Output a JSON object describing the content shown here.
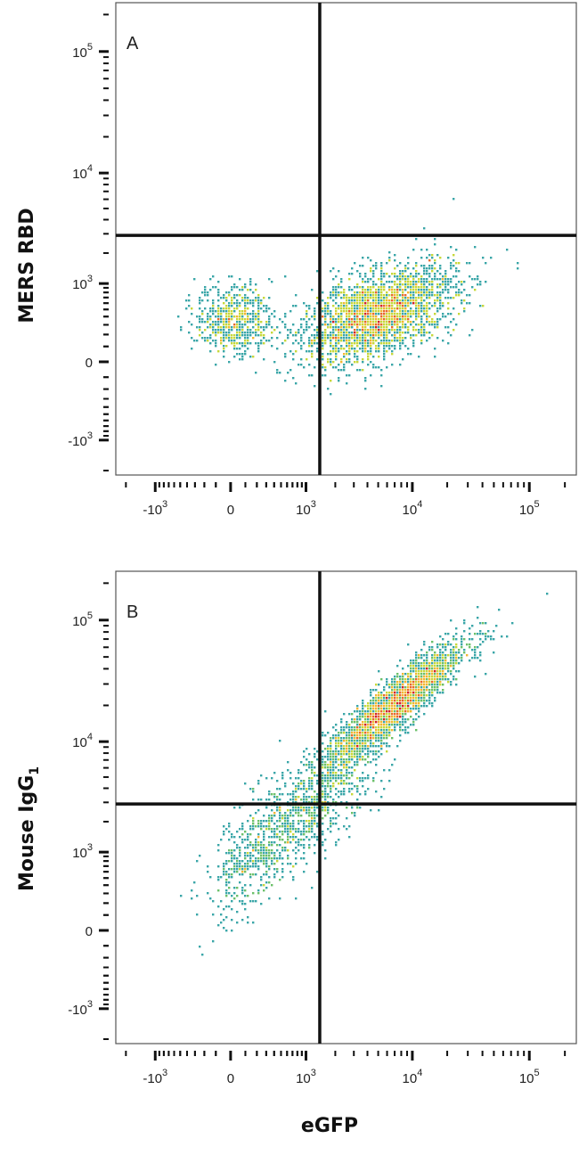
{
  "chart_data": [
    {
      "type": "scatter",
      "subtype": "flow-cytometry-density-dot-plot",
      "panel_label": "A",
      "xlabel": "eGFP",
      "ylabel": "MERS RBD",
      "x_scale": "biexponential",
      "y_scale": "biexponential",
      "x_ticks": [
        {
          "base": "-10",
          "exp": "3",
          "value": -1000
        },
        {
          "base": "0",
          "exp": "",
          "value": 0
        },
        {
          "base": "10",
          "exp": "3",
          "value": 1000
        },
        {
          "base": "10",
          "exp": "4",
          "value": 10000
        },
        {
          "base": "10",
          "exp": "5",
          "value": 100000
        }
      ],
      "y_ticks": [
        {
          "base": "-10",
          "exp": "3",
          "value": -1000
        },
        {
          "base": "0",
          "exp": "",
          "value": 0
        },
        {
          "base": "10",
          "exp": "3",
          "value": 1000
        },
        {
          "base": "10",
          "exp": "4",
          "value": 10000
        },
        {
          "base": "10",
          "exp": "5",
          "value": 100000
        }
      ],
      "xlim": [
        -2500,
        250000
      ],
      "ylim": [
        -2200,
        250000
      ],
      "quadrant_gate": {
        "x": 1400,
        "y": 2900
      },
      "populations": [
        {
          "center": [
            5000,
            420
          ],
          "count": 2500,
          "spread": [
            0.33,
            0.2
          ],
          "corr": 0.5
        },
        {
          "center": [
            20,
            360
          ],
          "count": 600,
          "spread": [
            0.16,
            0.14
          ],
          "corr": 0.0
        }
      ],
      "grid": false,
      "legend": "none"
    },
    {
      "type": "scatter",
      "subtype": "flow-cytometry-density-dot-plot",
      "panel_label": "B",
      "xlabel": "eGFP",
      "ylabel": "Mouse IgG",
      "ylabel_subscript": "1",
      "x_scale": "biexponential",
      "y_scale": "biexponential",
      "x_ticks": [
        {
          "base": "-10",
          "exp": "3",
          "value": -1000
        },
        {
          "base": "0",
          "exp": "",
          "value": 0
        },
        {
          "base": "10",
          "exp": "3",
          "value": 1000
        },
        {
          "base": "10",
          "exp": "4",
          "value": 10000
        },
        {
          "base": "10",
          "exp": "5",
          "value": 100000
        }
      ],
      "y_ticks": [
        {
          "base": "-10",
          "exp": "3",
          "value": -1000
        },
        {
          "base": "0",
          "exp": "",
          "value": 0
        },
        {
          "base": "10",
          "exp": "3",
          "value": 1000
        },
        {
          "base": "10",
          "exp": "4",
          "value": 10000
        },
        {
          "base": "10",
          "exp": "5",
          "value": 100000
        }
      ],
      "xlim": [
        -2500,
        250000
      ],
      "ylim": [
        -2200,
        250000
      ],
      "quadrant_gate": {
        "x": 1400,
        "y": 2900
      },
      "populations": [
        {
          "center": [
            7000,
            20000
          ],
          "count": 2400,
          "spread": [
            0.3,
            0.26
          ],
          "corr": 0.9
        },
        {
          "center": [
            1100,
            2600
          ],
          "count": 900,
          "spread": [
            0.32,
            0.32
          ],
          "corr": 0.8
        },
        {
          "center": [
            150,
            900
          ],
          "count": 350,
          "spread": [
            0.2,
            0.28
          ],
          "corr": 0.6
        }
      ],
      "grid": false,
      "legend": "none"
    }
  ]
}
